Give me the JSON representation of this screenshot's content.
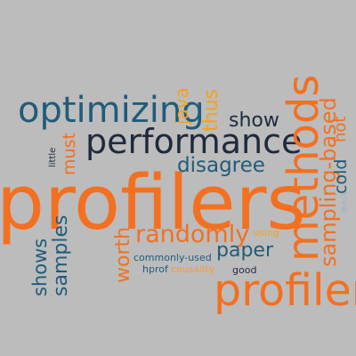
{
  "palette": {
    "background": "#bcbcbc",
    "orange": "#f37021",
    "dark_teal": "#1f5c7a",
    "navy": "#1e2a3c",
    "gold": "#f2a600",
    "amber": "#f5a21b",
    "light_blue": "#9bb3c8"
  },
  "words": {
    "profilers": "profilers",
    "methods": "methods",
    "profiler": "profiler",
    "performance": "performance",
    "optimizing": "optimizing",
    "sampling_based": "sampling-based",
    "randomly": "randomly",
    "disagree": "disagree",
    "show": "show",
    "samples": "samples",
    "shows": "shows",
    "paper": "paper",
    "worth": "worth",
    "java": "java",
    "thus": "thus",
    "must": "must",
    "cold": "cold",
    "hot": "hot",
    "least": "least",
    "little": "little",
    "using": "using",
    "commonly_used": "commonly-used",
    "hprof": "hprof",
    "causality": "causality",
    "good": "good"
  }
}
